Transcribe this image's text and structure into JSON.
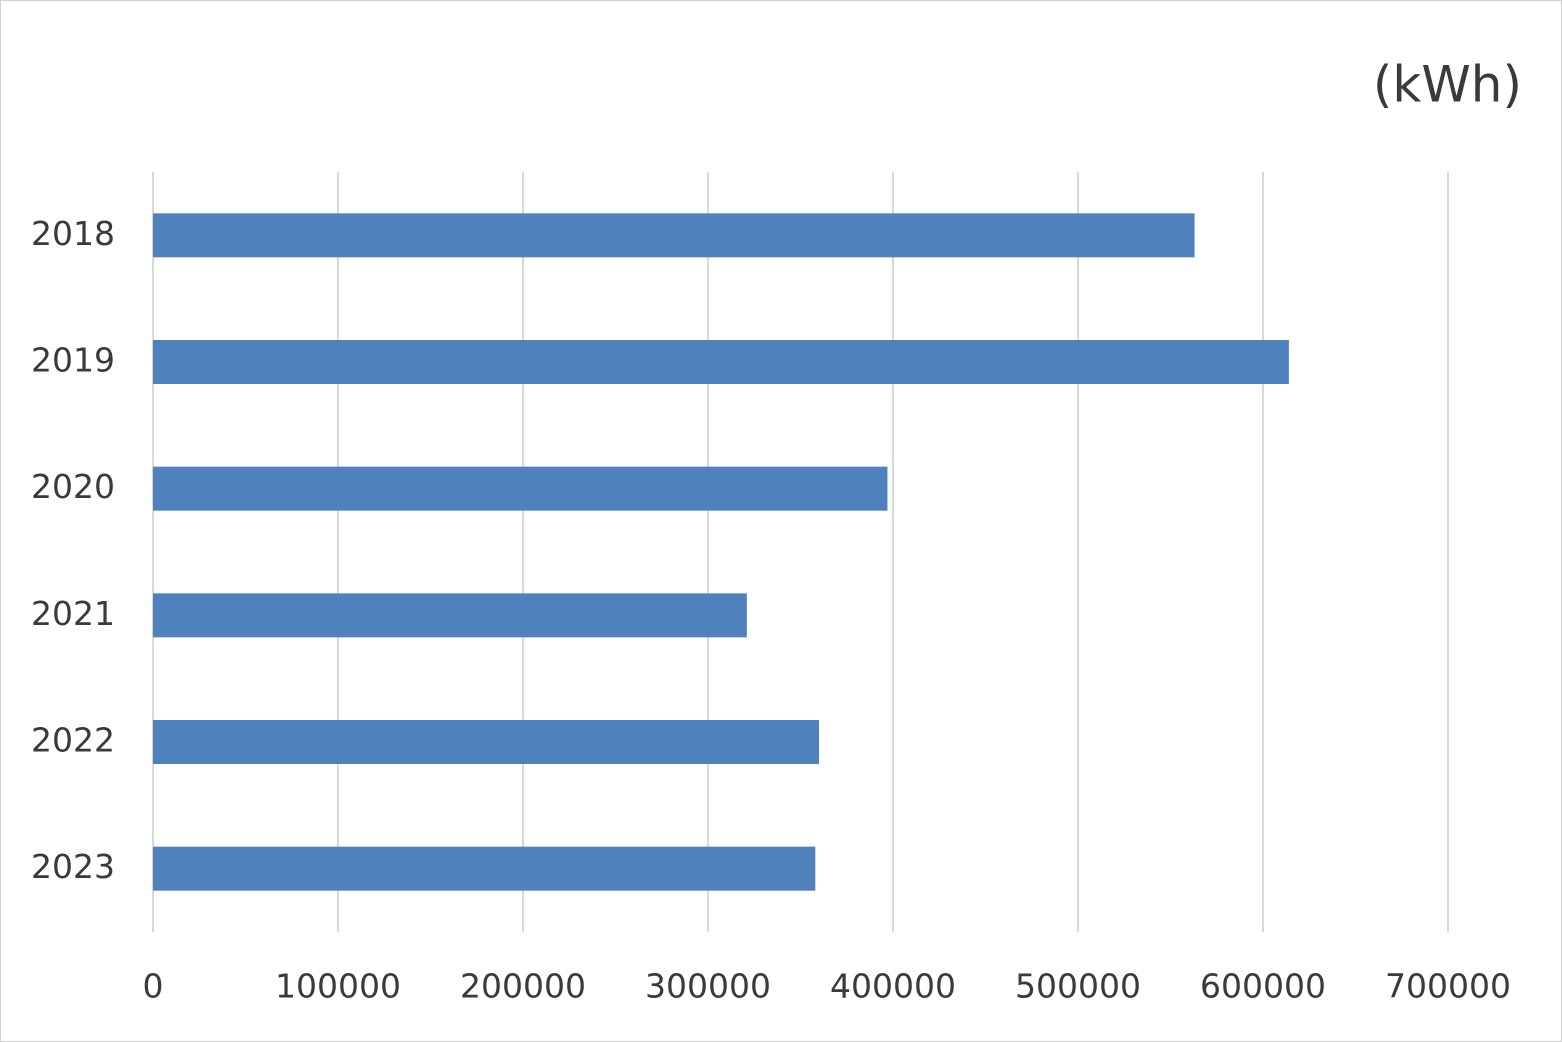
{
  "chart_data": {
    "type": "bar",
    "orientation": "horizontal",
    "unit_label": "(kWh)",
    "categories": [
      "2018",
      "2019",
      "2020",
      "2021",
      "2022",
      "2023"
    ],
    "values": [
      563000,
      614000,
      397000,
      321000,
      360000,
      358000
    ],
    "color": "#4f81bd",
    "xlim": [
      0,
      700000
    ],
    "xticks": [
      0,
      100000,
      200000,
      300000,
      400000,
      500000,
      600000,
      700000
    ],
    "grid": true
  }
}
